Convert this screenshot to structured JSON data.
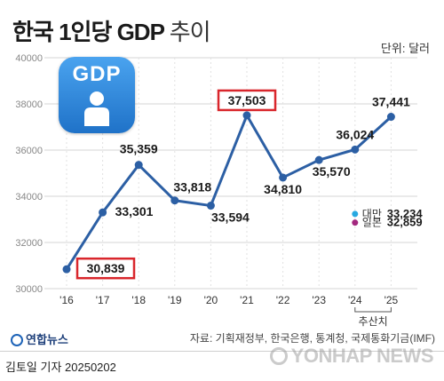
{
  "header": {
    "title_main": "한국 1인당 GDP",
    "title_sub": "추이",
    "unit": "단위: 달러"
  },
  "icon": {
    "label": "GDP",
    "name": "person-icon",
    "bg_color": "#2b86dc"
  },
  "chart_data": {
    "type": "line",
    "categories": [
      "'16",
      "'17",
      "'18",
      "'19",
      "'20",
      "'21",
      "'22",
      "'23",
      "'24",
      "'25"
    ],
    "series": [
      {
        "values": [
          30839,
          33301,
          35359,
          33818,
          33594,
          37503,
          34810,
          35570,
          36024,
          37441
        ],
        "labels": [
          "30,839",
          "33,301",
          "35,359",
          "33,818",
          "33,594",
          "37,503",
          "34,810",
          "35,570",
          "36,024",
          "37,441"
        ],
        "color": "#2c5fa4"
      }
    ],
    "comparison_points": [
      {
        "name": "대만",
        "x": "'24",
        "value": 33234,
        "label": "33,234",
        "color": "#27a9e1"
      },
      {
        "name": "일본",
        "x": "'24",
        "value": 32859,
        "label": "32,859",
        "color": "#a3287f"
      }
    ],
    "highlighted": [
      "30,839",
      "37,503"
    ],
    "highlight_color": "#d9262c",
    "forecast_label": "추산치",
    "ylim": [
      30000,
      40000
    ],
    "yticks": [
      "30000",
      "32000",
      "34000",
      "36000",
      "38000",
      "40000"
    ],
    "grid": true
  },
  "footer": {
    "logo": "연합뉴스",
    "source": "자료: 기획재정부, 한국은행, 통계청, 국제통화기금(IMF)",
    "credit": "김토일 기자  20250202",
    "watermark": "YONHAP NEWS"
  }
}
